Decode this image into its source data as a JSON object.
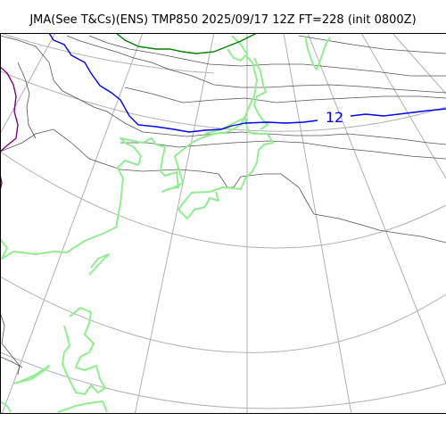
{
  "title": "JMA(See T&Cs)(ENS) TMP850 2025/09/17 12Z FT=228 (init 0800Z)",
  "map": {
    "colors": {
      "graticule": "#b0b0b0",
      "coast": "#90ee90",
      "contour": "#555555",
      "isotherm_12": "#0000ee",
      "isotherm_15": "#008000",
      "isotherm_9": "#800080"
    },
    "isotherm_labels": [
      {
        "value": "12",
        "color": "#0000ee"
      }
    ]
  }
}
